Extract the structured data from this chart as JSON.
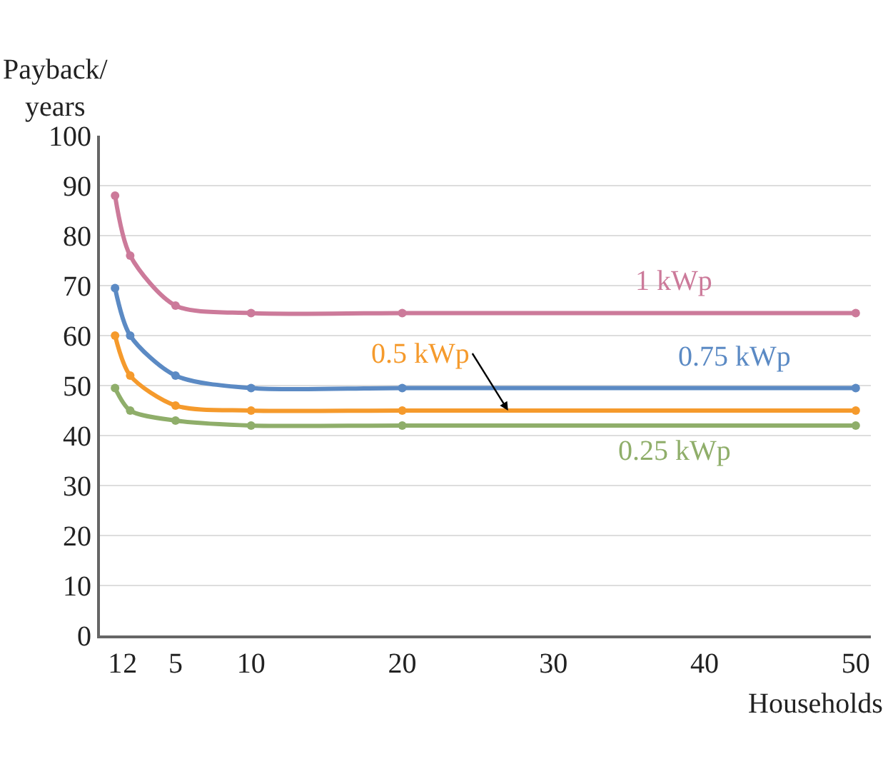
{
  "chart_data": {
    "type": "line",
    "xlabel": "Households",
    "ylabel": "Payback/\nyears",
    "x": [
      1,
      2,
      5,
      10,
      20,
      50
    ],
    "series": [
      {
        "name": "1 kWp",
        "color": "#cc7a9a",
        "values": [
          88,
          76,
          66,
          64.5,
          64.5,
          64.5
        ]
      },
      {
        "name": "0.75 kWp",
        "color": "#5b8ac4",
        "values": [
          69.5,
          60,
          52,
          49.5,
          49.5,
          49.5
        ]
      },
      {
        "name": "0.5 kWp",
        "color": "#f59a2c",
        "values": [
          60,
          52,
          46,
          45,
          45,
          45
        ]
      },
      {
        "name": "0.25 kWp",
        "color": "#8fae6a",
        "values": [
          49.5,
          45,
          43,
          42,
          42,
          42
        ]
      }
    ],
    "xlim": [
      0,
      51
    ],
    "xticks": [
      1,
      2,
      5,
      10,
      20,
      30,
      40,
      50
    ],
    "ylim": [
      0,
      100
    ],
    "yticks": [
      0,
      10,
      20,
      30,
      40,
      50,
      60,
      70,
      80,
      90,
      100
    ],
    "grid": "y",
    "legend": false,
    "marker": "circle",
    "line_style": "solid"
  }
}
